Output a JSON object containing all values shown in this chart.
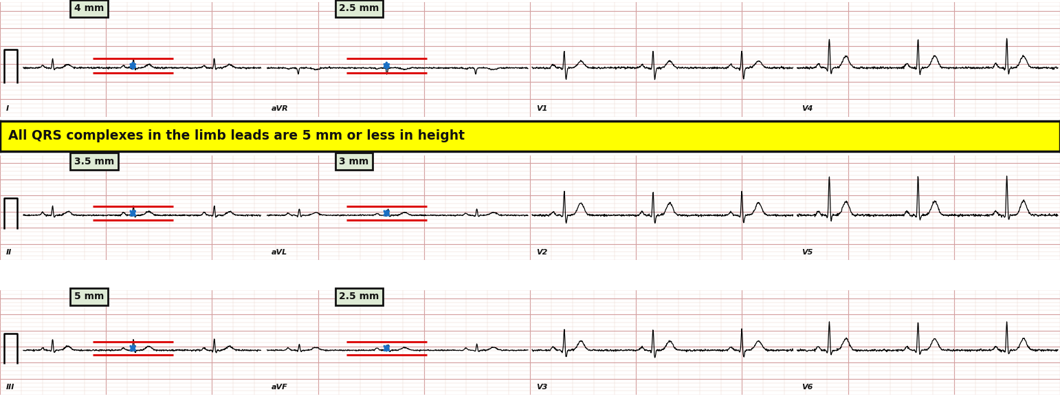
{
  "annotation_text": "All QRS complexes in the limb leads are 5 mm or less in height",
  "annotation_bg": "#FFFF00",
  "annotation_border": "#111111",
  "ecg_bg": "#f5eee0",
  "grid_major_color": "#d4a0a0",
  "grid_minor_color": "#ead0c8",
  "fig_bg": "#ffffff",
  "arrow_color": "#1a6fc4",
  "red_line_color": "#dd1111",
  "label_box_bg": "#deebd5",
  "label_box_edge": "#111111",
  "label_box_edge_width": 2.0,
  "fig_width": 15.42,
  "fig_height": 5.86,
  "dpi": 100,
  "mm_labels": [
    [
      "4 mm",
      "2.5 mm"
    ],
    [
      "3.5 mm",
      "3 mm"
    ],
    [
      "5 mm",
      "2.5 mm"
    ]
  ],
  "lead_labels": [
    [
      "I",
      "aVR",
      "V1",
      "V4"
    ],
    [
      "II",
      "aVL",
      "V2",
      "V5"
    ],
    [
      "III",
      "aVF",
      "V3",
      "V6"
    ]
  ]
}
